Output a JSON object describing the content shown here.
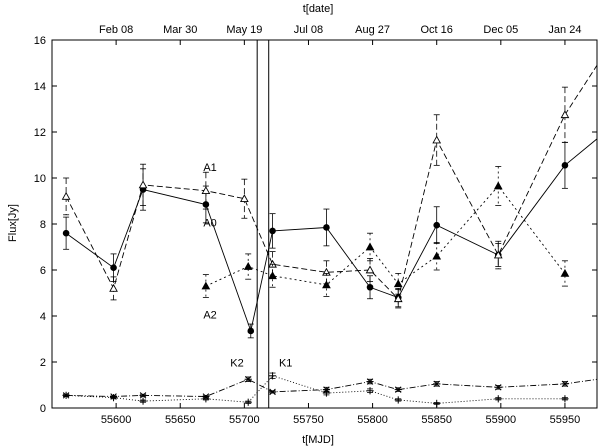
{
  "chart_data": {
    "type": "line",
    "title": "",
    "xlabel": "t[MJD]",
    "ylabel": "Flux[Jy]",
    "top_xlabel": "t[date]",
    "xlim": [
      55550,
      55975
    ],
    "ylim": [
      0,
      16
    ],
    "x_ticks": [
      55600,
      55650,
      55700,
      55750,
      55800,
      55850,
      55900,
      55950
    ],
    "y_ticks": [
      0,
      2,
      4,
      6,
      8,
      10,
      12,
      14,
      16
    ],
    "top_ticks": [
      {
        "mjd": 55600,
        "label": "Feb 08"
      },
      {
        "mjd": 55650,
        "label": "Mar 30"
      },
      {
        "mjd": 55700,
        "label": "May 19"
      },
      {
        "mjd": 55750,
        "label": "Jul 08"
      },
      {
        "mjd": 55800,
        "label": "Aug 27"
      },
      {
        "mjd": 55850,
        "label": "Oct 16"
      },
      {
        "mjd": 55900,
        "label": "Dec 05"
      },
      {
        "mjd": 55950,
        "label": "Jan 24"
      }
    ],
    "vertical_lines": [
      55710,
      55719
    ],
    "series": [
      {
        "name": "A0",
        "marker": "circle",
        "dash": "",
        "extend_to": [
          55975,
          11.7
        ],
        "x": [
          55561,
          55598,
          55621,
          55670,
          55705,
          55722,
          55764,
          55798,
          55820,
          55850,
          55898,
          55950
        ],
        "y": [
          7.6,
          6.1,
          9.5,
          8.85,
          3.35,
          7.7,
          7.85,
          5.25,
          4.8,
          7.95,
          6.65,
          10.55
        ],
        "err": [
          0.7,
          0.6,
          0.9,
          0.8,
          0.3,
          0.75,
          0.8,
          0.5,
          0.4,
          0.8,
          0.5,
          1.0
        ]
      },
      {
        "name": "A1",
        "marker": "tri-open",
        "dash": "6,3",
        "extend_to": [
          55975,
          14.9
        ],
        "x": [
          55561,
          55598,
          55621,
          55670,
          55700,
          55722,
          55764,
          55798,
          55820,
          55850,
          55898,
          55950
        ],
        "y": [
          9.2,
          5.2,
          9.7,
          9.45,
          9.1,
          6.25,
          5.9,
          6.0,
          4.75,
          11.65,
          6.65,
          12.75
        ],
        "err": [
          0.8,
          0.5,
          0.9,
          0.8,
          0.85,
          0.55,
          0.5,
          0.5,
          0.4,
          1.1,
          0.6,
          1.2
        ]
      },
      {
        "name": "A2",
        "marker": "tri-filled",
        "dash": "2,3",
        "x": [
          55670,
          55703,
          55722,
          55764,
          55798,
          55820,
          55850,
          55898,
          55950
        ],
        "y": [
          5.3,
          6.15,
          5.75,
          5.35,
          7.0,
          5.4,
          6.6,
          9.65,
          5.85
        ],
        "err": [
          0.5,
          0.55,
          0.5,
          0.5,
          0.6,
          0.45,
          0.6,
          0.85,
          0.55
        ]
      },
      {
        "name": "K2",
        "marker": "star",
        "dash": "6,2,1,2",
        "extend_to": [
          55975,
          1.25
        ],
        "x": [
          55561,
          55598,
          55621,
          55670,
          55703,
          55722,
          55764,
          55798,
          55820,
          55850,
          55898,
          55950
        ],
        "y": [
          0.55,
          0.5,
          0.55,
          0.5,
          1.25,
          0.7,
          0.8,
          1.15,
          0.8,
          1.05,
          0.9,
          1.05
        ],
        "err": [
          0.05,
          0.05,
          0.05,
          0.05,
          0.1,
          0.05,
          0.1,
          0.1,
          0.08,
          0.1,
          0.08,
          0.1
        ]
      },
      {
        "name": "K1",
        "marker": "plus",
        "dash": "1,2",
        "x": [
          55561,
          55598,
          55621,
          55670,
          55703,
          55722,
          55764,
          55798,
          55820,
          55850,
          55898,
          55950
        ],
        "y": [
          0.55,
          0.45,
          0.3,
          0.4,
          0.25,
          1.4,
          0.65,
          0.75,
          0.35,
          0.2,
          0.4,
          0.4
        ],
        "err": [
          0.05,
          0.05,
          0.05,
          0.05,
          0.05,
          0.12,
          0.08,
          0.08,
          0.05,
          0.04,
          0.05,
          0.05
        ]
      }
    ],
    "annotations": [
      {
        "text": "A1",
        "x": 55668,
        "y": 10.3
      },
      {
        "text": "A0",
        "x": 55668,
        "y": 7.9
      },
      {
        "text": "A2",
        "x": 55668,
        "y": 3.9
      },
      {
        "text": "K2",
        "x": 55689,
        "y": 1.8
      },
      {
        "text": "K1",
        "x": 55727,
        "y": 1.8
      }
    ]
  }
}
